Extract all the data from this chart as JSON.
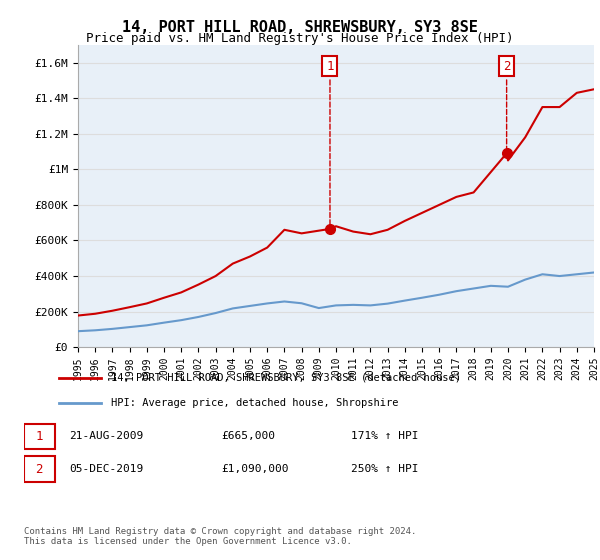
{
  "title": "14, PORT HILL ROAD, SHREWSBURY, SY3 8SE",
  "subtitle": "Price paid vs. HM Land Registry's House Price Index (HPI)",
  "legend_line1": "14, PORT HILL ROAD, SHREWSBURY, SY3 8SE (detached house)",
  "legend_line2": "HPI: Average price, detached house, Shropshire",
  "annotation1_label": "1",
  "annotation1_date": "21-AUG-2009",
  "annotation1_price": "£665,000",
  "annotation1_hpi": "171% ↑ HPI",
  "annotation2_label": "2",
  "annotation2_date": "05-DEC-2019",
  "annotation2_price": "£1,090,000",
  "annotation2_hpi": "250% ↑ HPI",
  "footnote": "Contains HM Land Registry data © Crown copyright and database right 2024.\nThis data is licensed under the Open Government Licence v3.0.",
  "red_color": "#cc0000",
  "blue_color": "#6699cc",
  "background_color": "#ffffff",
  "grid_color": "#dddddd",
  "annotation_box_color": "#cc0000",
  "ylim": [
    0,
    1700000
  ],
  "yticks": [
    0,
    200000,
    400000,
    600000,
    800000,
    1000000,
    1200000,
    1400000,
    1600000
  ],
  "ytick_labels": [
    "£0",
    "£200K",
    "£400K",
    "£600K",
    "£800K",
    "£1M",
    "£1.2M",
    "£1.4M",
    "£1.6M"
  ],
  "hpi_years": [
    1995,
    1996,
    1997,
    1998,
    1999,
    2000,
    2001,
    2002,
    2003,
    2004,
    2005,
    2006,
    2007,
    2008,
    2009,
    2010,
    2011,
    2012,
    2013,
    2014,
    2015,
    2016,
    2017,
    2018,
    2019,
    2020,
    2021,
    2022,
    2023,
    2024,
    2025
  ],
  "hpi_values": [
    90000,
    95000,
    103000,
    113000,
    123000,
    138000,
    152000,
    170000,
    192000,
    218000,
    232000,
    246000,
    257000,
    247000,
    220000,
    235000,
    238000,
    235000,
    245000,
    262000,
    278000,
    295000,
    315000,
    330000,
    345000,
    340000,
    380000,
    410000,
    400000,
    410000,
    420000
  ],
  "red_years": [
    1995,
    1996,
    1997,
    1998,
    1999,
    2000,
    2001,
    2002,
    2003,
    2004,
    2005,
    2006,
    2007,
    2008,
    2009.65,
    2010,
    2011,
    2012,
    2013,
    2014,
    2015,
    2016,
    2017,
    2018,
    2019.92,
    2020,
    2021,
    2022,
    2023,
    2024,
    2025
  ],
  "red_values": [
    178000,
    188000,
    205000,
    225000,
    246000,
    278000,
    308000,
    352000,
    400000,
    470000,
    510000,
    560000,
    660000,
    640000,
    665000,
    680000,
    650000,
    635000,
    660000,
    710000,
    755000,
    800000,
    845000,
    870000,
    1090000,
    1050000,
    1180000,
    1350000,
    1350000,
    1430000,
    1450000
  ],
  "sale1_x": 2009.65,
  "sale1_y": 665000,
  "sale2_x": 2019.92,
  "sale2_y": 1090000,
  "xmin": 1995,
  "xmax": 2025
}
